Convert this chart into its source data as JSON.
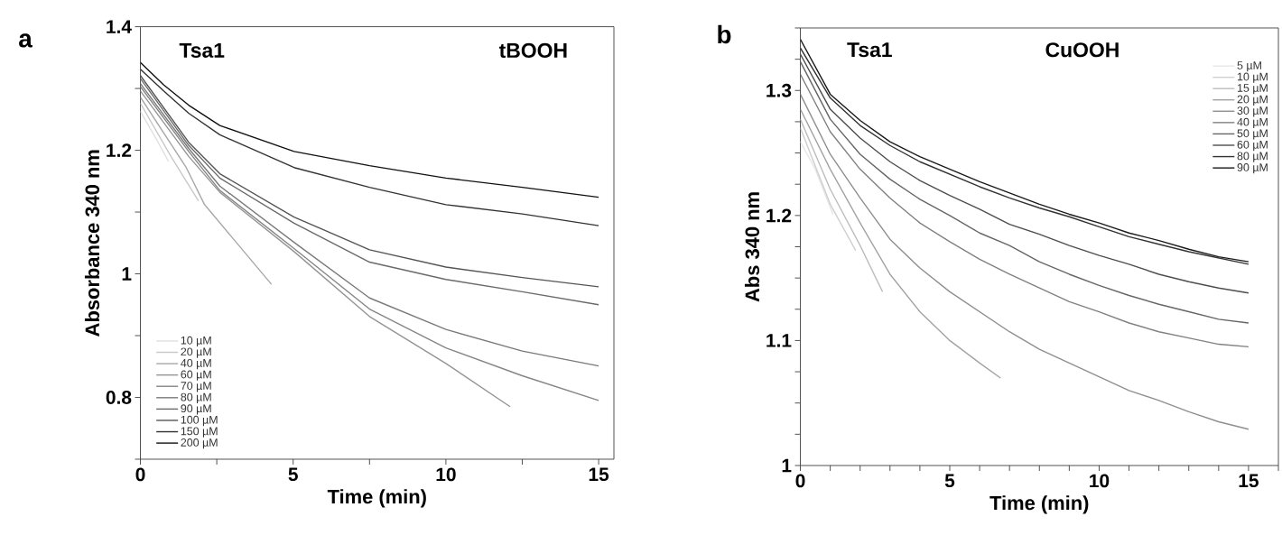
{
  "chart_data": [
    {
      "type": "line",
      "xlabel": "Time (min)",
      "ylabel": "Absorbance 340 nm",
      "annotations": [
        "a",
        "Tsa1",
        "tBOOH"
      ],
      "xlim": [
        0,
        15.5
      ],
      "ylim": [
        0.7,
        1.4
      ],
      "xticks": [
        0,
        {
          "value": 2.5,
          "label": null
        },
        5,
        {
          "value": 7.5,
          "label": null
        },
        10,
        {
          "value": 12.5,
          "label": null
        },
        15
      ],
      "yticks": [
        {
          "value": 0.7,
          "label": null
        },
        0.8,
        {
          "value": 0.9,
          "label": null
        },
        1,
        {
          "value": 1.1,
          "label": null
        },
        1.2,
        {
          "value": 1.3,
          "label": null
        },
        1.4
      ],
      "legend": "bottom left",
      "marker": "none",
      "line_style": "solid",
      "series": [
        {
          "name": "10 µM",
          "color": "#e0e0e0",
          "x": [
            0,
            0.5,
            0.92
          ],
          "values": [
            1.263,
            1.22,
            1.182
          ]
        },
        {
          "name": "20 µM",
          "color": "#c8c8c8",
          "x": [
            0,
            1.0,
            1.9
          ],
          "values": [
            1.276,
            1.19,
            1.118
          ]
        },
        {
          "name": "40 µM",
          "color": "#a8a8a8",
          "x": [
            0,
            1.5,
            2.1,
            4.29
          ],
          "values": [
            1.286,
            1.172,
            1.112,
            0.983
          ]
        },
        {
          "name": "60 µM",
          "color": "#949494",
          "x": [
            0,
            1.58,
            2.6,
            5.03,
            7.5,
            10,
            12.1
          ],
          "values": [
            1.296,
            1.19,
            1.132,
            1.036,
            0.931,
            0.855,
            0.785
          ]
        },
        {
          "name": "70 µM",
          "color": "#858585",
          "x": [
            0,
            1.58,
            2.6,
            5.03,
            7.5,
            10,
            12.5,
            15
          ],
          "values": [
            1.303,
            1.198,
            1.135,
            1.041,
            0.943,
            0.88,
            0.835,
            0.795
          ]
        },
        {
          "name": "80 µM",
          "color": "#7a7a7a",
          "x": [
            0,
            1.58,
            2.6,
            5.03,
            7.5,
            10,
            12.5,
            15
          ],
          "values": [
            1.308,
            1.203,
            1.142,
            1.051,
            0.961,
            0.91,
            0.875,
            0.851
          ]
        },
        {
          "name": "90 µM",
          "color": "#6a6a6a",
          "x": [
            0,
            1.58,
            2.6,
            5.03,
            7.5,
            10,
            12.5,
            15
          ],
          "values": [
            1.316,
            1.208,
            1.155,
            1.082,
            1.019,
            0.991,
            0.971,
            0.95
          ]
        },
        {
          "name": "100 µM",
          "color": "#555555",
          "x": [
            0,
            1.58,
            2.6,
            5.03,
            7.5,
            10,
            12.5,
            15
          ],
          "values": [
            1.321,
            1.213,
            1.162,
            1.092,
            1.039,
            1.011,
            0.994,
            0.979
          ]
        },
        {
          "name": "150 µM",
          "color": "#333333",
          "x": [
            0,
            0.76,
            1.58,
            2.6,
            5.03,
            7.5,
            10,
            12.5,
            15
          ],
          "values": [
            1.331,
            1.296,
            1.26,
            1.225,
            1.172,
            1.14,
            1.112,
            1.097,
            1.078
          ]
        },
        {
          "name": "200 µM",
          "color": "#111111",
          "x": [
            0,
            0.76,
            1.58,
            2.6,
            5.03,
            7.5,
            10,
            12.5,
            15
          ],
          "values": [
            1.342,
            1.306,
            1.273,
            1.24,
            1.198,
            1.175,
            1.155,
            1.14,
            1.124
          ]
        }
      ]
    },
    {
      "type": "line",
      "xlabel": "Time (min)",
      "ylabel": "Abs 340 nm",
      "annotations": [
        "b",
        "Tsa1",
        "CuOOH"
      ],
      "xlim": [
        0,
        16
      ],
      "ylim": [
        1,
        1.35
      ],
      "xticks": [
        0,
        {
          "value": 1,
          "label": null
        },
        {
          "value": 2,
          "label": null
        },
        {
          "value": 3,
          "label": null
        },
        {
          "value": 4,
          "label": null
        },
        5,
        {
          "value": 6,
          "label": null
        },
        {
          "value": 7,
          "label": null
        },
        {
          "value": 8,
          "label": null
        },
        {
          "value": 9,
          "label": null
        },
        10,
        {
          "value": 11,
          "label": null
        },
        {
          "value": 12,
          "label": null
        },
        {
          "value": 13,
          "label": null
        },
        {
          "value": 14,
          "label": null
        },
        15,
        {
          "value": 16,
          "label": null
        }
      ],
      "yticks": [
        1,
        {
          "value": 1.025,
          "label": null
        },
        {
          "value": 1.05,
          "label": null
        },
        {
          "value": 1.075,
          "label": null
        },
        1.1,
        {
          "value": 1.125,
          "label": null
        },
        {
          "value": 1.15,
          "label": null
        },
        {
          "value": 1.175,
          "label": null
        },
        1.2,
        {
          "value": 1.225,
          "label": null
        },
        {
          "value": 1.25,
          "label": null
        },
        {
          "value": 1.275,
          "label": null
        },
        1.3,
        {
          "value": 1.325,
          "label": null
        },
        {
          "value": 1.35,
          "label": null
        }
      ],
      "legend": "top right",
      "marker": "none",
      "line_style": "solid",
      "series": [
        {
          "name": "5 µM",
          "color": "#e6e6e6",
          "x": [
            0,
            0.5,
            1.09
          ],
          "values": [
            1.259,
            1.237,
            1.201
          ]
        },
        {
          "name": "10 µM",
          "color": "#cfcfcf",
          "x": [
            0,
            1,
            1.85
          ],
          "values": [
            1.27,
            1.209,
            1.172
          ]
        },
        {
          "name": "15 µM",
          "color": "#bdbdbd",
          "x": [
            0,
            1,
            2,
            2.75
          ],
          "values": [
            1.277,
            1.221,
            1.176,
            1.139
          ]
        },
        {
          "name": "20 µM",
          "color": "#a3a3a3",
          "x": [
            0,
            1,
            2,
            3,
            4,
            5,
            6,
            6.7
          ],
          "values": [
            1.285,
            1.237,
            1.194,
            1.153,
            1.123,
            1.1,
            1.082,
            1.07
          ]
        },
        {
          "name": "30 µM",
          "color": "#8f8f8f",
          "x": [
            0,
            1,
            2,
            3,
            4,
            5,
            6,
            7,
            8,
            9,
            10,
            11,
            12,
            13,
            14,
            15
          ],
          "values": [
            1.297,
            1.249,
            1.214,
            1.181,
            1.158,
            1.139,
            1.123,
            1.107,
            1.093,
            1.082,
            1.071,
            1.06,
            1.052,
            1.043,
            1.035,
            1.029
          ]
        },
        {
          "name": "40 µM",
          "color": "#808080",
          "x": [
            0,
            1,
            2,
            3,
            4,
            5,
            6,
            7,
            8,
            9,
            10,
            11,
            12,
            13,
            14,
            15
          ],
          "values": [
            1.313,
            1.267,
            1.237,
            1.214,
            1.194,
            1.179,
            1.165,
            1.153,
            1.142,
            1.131,
            1.123,
            1.114,
            1.107,
            1.102,
            1.097,
            1.095
          ]
        },
        {
          "name": "50 µM",
          "color": "#666666",
          "x": [
            0,
            1,
            2,
            3,
            4,
            5,
            6,
            7,
            8,
            9,
            10,
            11,
            12,
            13,
            14,
            15
          ],
          "values": [
            1.323,
            1.277,
            1.249,
            1.229,
            1.213,
            1.2,
            1.186,
            1.176,
            1.163,
            1.153,
            1.144,
            1.136,
            1.129,
            1.123,
            1.117,
            1.114
          ]
        },
        {
          "name": "60 µM",
          "color": "#4d4d4d",
          "x": [
            0,
            1,
            2,
            3,
            4,
            5,
            6,
            7,
            8,
            9,
            10,
            11,
            12,
            13,
            14,
            15
          ],
          "values": [
            1.329,
            1.285,
            1.262,
            1.243,
            1.228,
            1.216,
            1.205,
            1.193,
            1.185,
            1.176,
            1.168,
            1.161,
            1.153,
            1.147,
            1.142,
            1.138
          ]
        },
        {
          "name": "80 µM",
          "color": "#333333",
          "x": [
            0,
            1,
            2,
            3,
            4,
            5,
            6,
            7,
            8,
            9,
            10,
            11,
            12,
            13,
            14,
            15
          ],
          "values": [
            1.334,
            1.294,
            1.272,
            1.256,
            1.243,
            1.233,
            1.223,
            1.214,
            1.206,
            1.199,
            1.191,
            1.183,
            1.177,
            1.171,
            1.166,
            1.161
          ]
        },
        {
          "name": "90 µM",
          "color": "#1a1a1a",
          "x": [
            0,
            1,
            2,
            3,
            4,
            5,
            6,
            7,
            8,
            9,
            10,
            11,
            12,
            13,
            14,
            15
          ],
          "values": [
            1.341,
            1.297,
            1.276,
            1.259,
            1.247,
            1.237,
            1.227,
            1.218,
            1.209,
            1.201,
            1.194,
            1.186,
            1.18,
            1.173,
            1.167,
            1.163
          ]
        }
      ]
    }
  ]
}
